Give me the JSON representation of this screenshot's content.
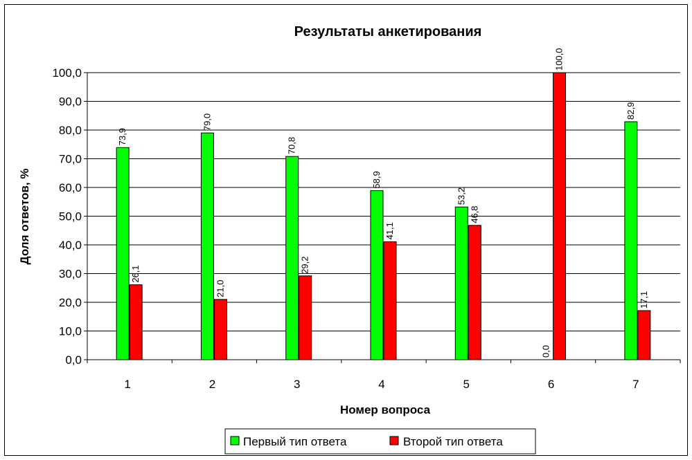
{
  "chart_data": {
    "type": "bar",
    "title": "Результаты анкетирования",
    "xlabel": "Номер вопроса",
    "ylabel": "Доля ответов, %",
    "categories": [
      "1",
      "2",
      "3",
      "4",
      "5",
      "6",
      "7"
    ],
    "series": [
      {
        "name": "Первый тип ответа",
        "color": "#00ff00",
        "values": [
          73.9,
          79.0,
          70.8,
          58.9,
          53.2,
          0.0,
          82.9
        ],
        "labels": [
          "73,9",
          "79,0",
          "70,8",
          "58,9",
          "53,2",
          "0,0",
          "82,9"
        ]
      },
      {
        "name": "Второй тип ответа",
        "color": "#ff0000",
        "values": [
          26.1,
          21.0,
          29.2,
          41.1,
          46.8,
          100.0,
          17.1
        ],
        "labels": [
          "26,1",
          "21,0",
          "29,2",
          "41,1",
          "46,8",
          "100,0",
          "17,1"
        ]
      }
    ],
    "ylim": [
      0,
      100
    ],
    "yticks": [
      "0,0",
      "10,0",
      "20,0",
      "30,0",
      "40,0",
      "50,0",
      "60,0",
      "70,0",
      "80,0",
      "90,0",
      "100,0"
    ],
    "grid": true,
    "legend_position": "bottom"
  }
}
